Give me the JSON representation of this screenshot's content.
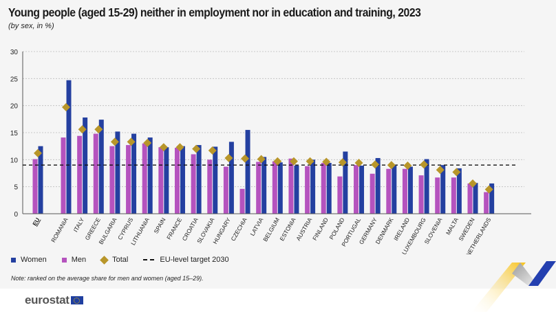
{
  "chart_data": {
    "type": "bar",
    "title": "Young people (aged 15-29) neither in employment nor in education and training, 2023",
    "subtitle": "(by sex, in %)",
    "categories": [
      "EU",
      "ROMANIA",
      "ITALY",
      "GREECE",
      "BULGARIA",
      "CYPRUS",
      "LITHUANIA",
      "SPAIN",
      "FRANCE",
      "CROATIA",
      "SLOVAKIA",
      "HUNGARY",
      "CZECHIA",
      "LATVIA",
      "BELGIUM",
      "ESTONIA",
      "AUSTRIA",
      "FINLAND",
      "POLAND",
      "PORTUGAL",
      "GERMANY",
      "DENMARK",
      "IRELAND",
      "LUXEMBOURG",
      "SLOVENIA",
      "MALTA",
      "SWEDEN",
      "NETHERLANDS"
    ],
    "series": [
      {
        "name": "Women",
        "type": "bar",
        "color": "#2440a0",
        "values": [
          12.5,
          24.7,
          17.8,
          17.4,
          15.2,
          14.8,
          14.1,
          12.3,
          12.5,
          12.7,
          12.4,
          13.3,
          15.5,
          10.5,
          9.5,
          8.9,
          10.0,
          9.4,
          11.5,
          8.9,
          10.3,
          8.9,
          8.7,
          10.1,
          9.0,
          8.4,
          5.7,
          5.6
        ]
      },
      {
        "name": "Men",
        "type": "bar",
        "color": "#b553be",
        "values": [
          10.1,
          14.1,
          14.4,
          14.8,
          12.5,
          12.7,
          13.0,
          12.3,
          12.2,
          11.0,
          10.0,
          8.7,
          4.6,
          9.6,
          9.7,
          10.2,
          8.8,
          9.4,
          6.9,
          9.0,
          7.4,
          8.3,
          8.3,
          7.1,
          6.7,
          6.7,
          5.6,
          4.0
        ]
      },
      {
        "name": "Total",
        "type": "diamond",
        "color": "#b8962a",
        "values": [
          11.2,
          19.7,
          15.6,
          15.6,
          13.3,
          13.3,
          13.1,
          12.3,
          12.3,
          12.0,
          11.7,
          10.3,
          10.2,
          10.1,
          9.7,
          9.7,
          9.7,
          9.6,
          9.5,
          9.4,
          9.1,
          9.0,
          8.9,
          9.1,
          8.1,
          7.7,
          5.6,
          4.5
        ]
      }
    ],
    "reference_line": {
      "name": "EU-level target 2030",
      "value": 9,
      "style": "dashed",
      "color": "#111111"
    },
    "yticks": [
      0,
      5,
      10,
      15,
      20,
      25,
      30
    ],
    "ylim": [
      0,
      30
    ],
    "grid": "horizontal dotted",
    "legend_placement": "bottom-left",
    "note": "Note: ranked on the average share for men and women (aged 15–29)."
  },
  "branding": {
    "logo": "eurostat"
  }
}
